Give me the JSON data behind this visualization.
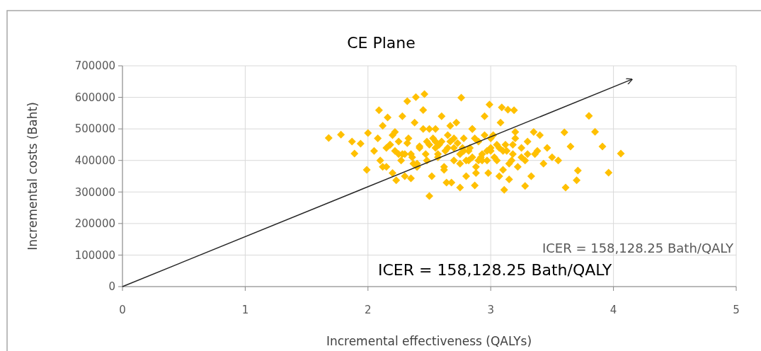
{
  "chart_data": {
    "type": "scatter",
    "title": "CE Plane",
    "xlabel": "Incremental effectiveness (QALYs)",
    "ylabel": "Incremental costs (Baht)",
    "xlim": [
      0,
      5
    ],
    "xticks": [
      0,
      1,
      2,
      3,
      4,
      5
    ],
    "ylim": [
      0,
      700000
    ],
    "yticks": [
      0,
      100000,
      200000,
      300000,
      400000,
      500000,
      600000,
      700000
    ],
    "grid": true,
    "annotations": [
      "ICER = 158,128.25 Bath/QALY",
      "ICER = 158,128.25 Bath/QALY"
    ],
    "series": [
      {
        "color": "#ffc000",
        "marker": "diamond",
        "x": [
          1.68,
          1.78,
          1.87,
          1.89,
          1.94,
          2.0,
          1.99,
          2.5,
          3.8,
          3.85,
          3.91,
          4.06,
          3.96,
          3.61,
          3.7,
          3.71,
          3.6,
          3.65,
          2.46,
          2.39,
          2.32,
          2.76,
          2.09,
          2.16,
          2.99,
          3.09,
          3.14,
          3.19,
          2.75,
          2.87,
          3.11,
          3.28,
          2.23,
          2.35,
          2.64,
          2.05,
          2.08,
          2.1,
          2.12,
          2.15,
          2.18,
          2.2,
          2.22,
          2.25,
          2.28,
          2.3,
          2.33,
          2.36,
          2.38,
          2.4,
          2.42,
          2.45,
          2.48,
          2.5,
          2.52,
          2.55,
          2.57,
          2.6,
          2.62,
          2.65,
          2.68,
          2.7,
          2.72,
          2.75,
          2.78,
          2.8,
          2.82,
          2.85,
          2.88,
          2.9,
          2.92,
          2.95,
          2.98,
          3.0,
          3.02,
          3.05,
          3.08,
          3.1,
          3.12,
          3.15,
          3.18,
          3.2,
          3.22,
          3.25,
          3.28,
          3.3,
          3.33,
          3.36,
          3.4,
          3.43,
          3.46,
          3.5,
          3.55,
          2.15,
          2.3,
          2.45,
          2.6,
          2.75,
          2.9,
          3.05,
          3.2,
          2.25,
          2.4,
          2.55,
          2.7,
          2.85,
          3.0,
          3.15,
          3.3,
          2.2,
          2.35,
          2.5,
          2.65,
          2.8,
          2.95,
          3.1,
          3.25,
          2.4,
          2.55,
          2.7,
          2.85,
          3.0,
          2.18,
          2.48,
          2.62,
          2.78,
          2.93,
          3.07,
          3.35,
          2.28,
          2.58,
          2.88,
          3.18,
          2.67,
          2.82,
          2.97,
          3.38,
          2.12,
          2.22,
          2.32,
          2.42,
          2.53,
          2.63,
          2.73,
          2.83,
          2.93,
          3.03,
          3.13,
          2.27,
          2.37,
          2.47,
          2.57,
          2.67,
          2.77,
          2.87,
          2.97,
          3.07,
          3.17
        ],
        "values": [
          471000,
          482000,
          460000,
          422000,
          453000,
          487000,
          370000,
          287000,
          541000,
          491000,
          444000,
          422000,
          361000,
          314000,
          337000,
          368000,
          489000,
          444000,
          610000,
          601000,
          588000,
          599000,
          559000,
          536000,
          577000,
          568000,
          561000,
          559000,
          314000,
          321000,
          307000,
          319000,
          337000,
          343000,
          330000,
          430000,
          470000,
          400000,
          510000,
          380000,
          450000,
          360000,
          490000,
          420000,
          540000,
          350000,
          470000,
          410000,
          520000,
          380000,
          445000,
          560000,
          400000,
          500000,
          350000,
          460000,
          420000,
          540000,
          370000,
          480000,
          330000,
          440000,
          520000,
          390000,
          470000,
          350000,
          430000,
          500000,
          380000,
          460000,
          410000,
          540000,
          360000,
          440000,
          480000,
          400000,
          520000,
          370000,
          450000,
          340000,
          420000,
          490000,
          380000,
          440000,
          400000,
          460000,
          350000,
          420000,
          480000,
          390000,
          440000,
          410000,
          400000,
          440000,
          420000,
          500000,
          460000,
          420000,
          400000,
          450000,
          470000,
          460000,
          390000,
          440000,
          470000,
          410000,
          430000,
          390000,
          420000,
          480000,
          420000,
          450000,
          440000,
          400000,
          480000,
          430000,
          410000,
          380000,
          500000,
          400000,
          500000,
          470000,
          450000,
          460000,
          380000,
          430000,
          400000,
          350000,
          490000,
          420000,
          450000,
          360000,
          450000,
          510000,
          400000,
          430000,
          430000,
          380000,
          430000,
          455000,
          440000,
          470000,
          430000,
          455000,
          440000,
          420000,
          410000,
          430000,
          400000,
          390000,
          420000,
          410000,
          460000,
          440000,
          470000,
          400000,
          440000,
          400000
        ]
      },
      {
        "type": "line",
        "color": "#262626",
        "x": [
          0,
          4.15
        ],
        "values": [
          0,
          657000
        ]
      }
    ]
  }
}
